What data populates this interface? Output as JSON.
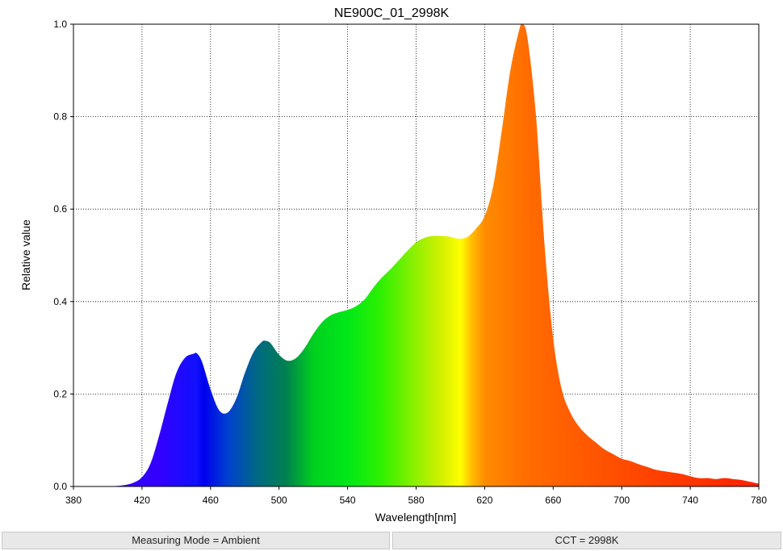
{
  "chart_data": {
    "type": "area",
    "title": "NE900C_01_2998K",
    "xlabel": "Wavelength[nm]",
    "ylabel": "Relative value",
    "xlim": [
      380,
      780
    ],
    "ylim": [
      0,
      1.0
    ],
    "x_ticks": [
      380,
      420,
      460,
      500,
      540,
      580,
      620,
      660,
      700,
      740,
      780
    ],
    "y_ticks": [
      0.0,
      0.2,
      0.4,
      0.6,
      0.8,
      1.0
    ],
    "y_tick_labels": [
      "0.0",
      "0.2",
      "0.4",
      "0.6",
      "0.8",
      "1.0"
    ],
    "grid": true,
    "fill": "wavelength-spectrum-gradient",
    "x": [
      400,
      405,
      410,
      415,
      420,
      425,
      430,
      435,
      440,
      445,
      450,
      452,
      455,
      460,
      465,
      470,
      475,
      480,
      485,
      490,
      492,
      495,
      500,
      505,
      510,
      515,
      520,
      525,
      530,
      535,
      540,
      545,
      550,
      555,
      560,
      565,
      570,
      575,
      580,
      585,
      590,
      595,
      600,
      605,
      610,
      615,
      620,
      625,
      630,
      635,
      640,
      642,
      645,
      650,
      655,
      660,
      665,
      670,
      675,
      680,
      685,
      690,
      695,
      700,
      705,
      710,
      715,
      720,
      725,
      730,
      735,
      740,
      745,
      750,
      755,
      760,
      765,
      770,
      775,
      780
    ],
    "values": [
      0.0,
      0.001,
      0.003,
      0.008,
      0.02,
      0.05,
      0.11,
      0.18,
      0.245,
      0.278,
      0.287,
      0.288,
      0.27,
      0.21,
      0.165,
      0.16,
      0.19,
      0.245,
      0.29,
      0.313,
      0.315,
      0.31,
      0.285,
      0.272,
      0.278,
      0.3,
      0.33,
      0.355,
      0.37,
      0.377,
      0.382,
      0.39,
      0.405,
      0.43,
      0.452,
      0.47,
      0.49,
      0.51,
      0.528,
      0.538,
      0.542,
      0.542,
      0.54,
      0.536,
      0.54,
      0.558,
      0.585,
      0.65,
      0.77,
      0.9,
      0.985,
      1.0,
      0.97,
      0.8,
      0.52,
      0.32,
      0.21,
      0.16,
      0.13,
      0.11,
      0.095,
      0.08,
      0.07,
      0.06,
      0.055,
      0.048,
      0.042,
      0.036,
      0.033,
      0.03,
      0.027,
      0.022,
      0.018,
      0.018,
      0.016,
      0.018,
      0.016,
      0.014,
      0.01,
      0.006
    ]
  },
  "status": {
    "measuring_mode": "Measuring Mode = Ambient",
    "cct": "CCT = 2998K"
  }
}
